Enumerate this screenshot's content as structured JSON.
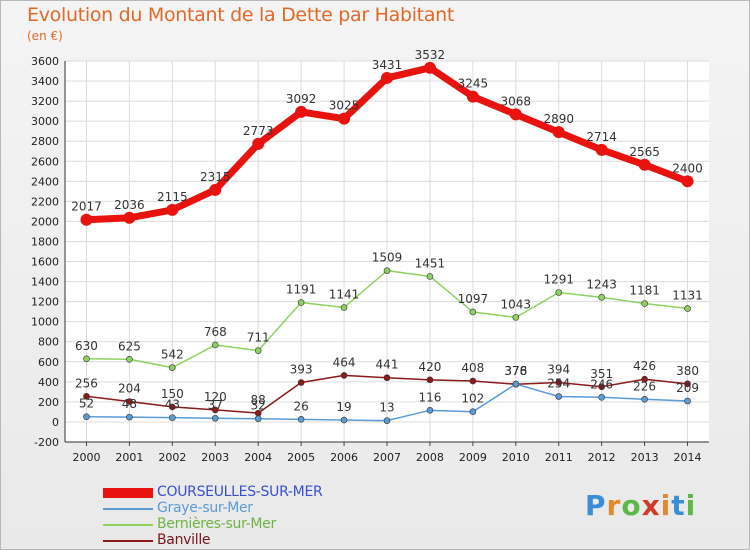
{
  "title": "Evolution du Montant de la Dette par Habitant",
  "subtitle": "(en €)",
  "logo": {
    "text": "Proxiti",
    "letter_colors": [
      "#3a8ed6",
      "#e08a2b",
      "#5db84a",
      "#d13b2b",
      "#e08a2b",
      "#3a8ed6",
      "#5db84a"
    ]
  },
  "chart_data": {
    "type": "line",
    "categories": [
      "2000",
      "2001",
      "2002",
      "2003",
      "2004",
      "2005",
      "2006",
      "2007",
      "2008",
      "2009",
      "2010",
      "2011",
      "2012",
      "2013",
      "2014"
    ],
    "ylim": [
      -200,
      3600
    ],
    "yticks": [
      -200,
      0,
      200,
      400,
      600,
      800,
      1000,
      1200,
      1400,
      1600,
      1800,
      2000,
      2200,
      2400,
      2600,
      2800,
      3000,
      3200,
      3400,
      3600
    ],
    "grid": true,
    "legend_position": "bottom-left",
    "series": [
      {
        "name": "COURSEULLES-SUR-MER",
        "color": "#e8130e",
        "legend_text_color": "#3a50d0",
        "values": [
          2017,
          2036,
          2115,
          2315,
          2773,
          3092,
          3025,
          3431,
          3532,
          3245,
          3068,
          2890,
          2714,
          2565,
          2400
        ]
      },
      {
        "name": "Graye-sur-Mer",
        "color": "#5b9bd5",
        "legend_text_color": "#5b9bd5",
        "values": [
          52,
          48,
          43,
          37,
          32,
          26,
          19,
          13,
          116,
          102,
          378,
          254,
          246,
          226,
          209
        ]
      },
      {
        "name": "Bernières-sur-Mer",
        "color": "#8fd15f",
        "legend_text_color": "#6fb443",
        "values": [
          630,
          625,
          542,
          768,
          711,
          1191,
          1141,
          1509,
          1451,
          1097,
          1043,
          1291,
          1243,
          1181,
          1131
        ]
      },
      {
        "name": "Banville",
        "color": "#8b1a1a",
        "legend_text_color": "#7a1818",
        "values": [
          256,
          204,
          150,
          120,
          88,
          393,
          464,
          441,
          420,
          408,
          376,
          394,
          351,
          426,
          380
        ]
      }
    ]
  }
}
